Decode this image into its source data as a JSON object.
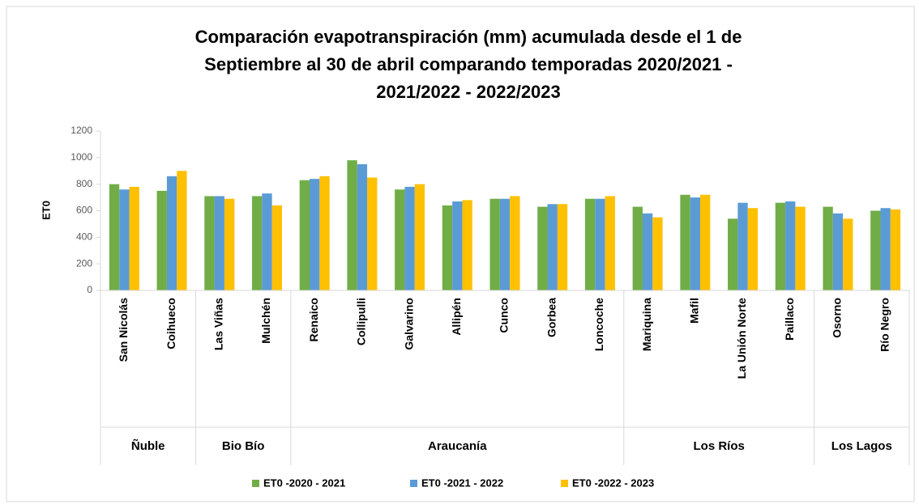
{
  "chart_data": {
    "type": "bar",
    "title": [
      "Comparación evapotranspiración (mm)  acumulada desde el 1 de",
      "Septiembre al 30 de abril comparando temporadas 2020/2021 -",
      "2021/2022 - 2022/2023"
    ],
    "y_label": "ET0",
    "groups": [
      {
        "name": "Ñuble",
        "categories": [
          "San Nicolás",
          "Coihueco"
        ]
      },
      {
        "name": "Bio Bío",
        "categories": [
          "Las Viñas",
          "Mulchén"
        ]
      },
      {
        "name": "Araucanía",
        "categories": [
          "Renaico",
          "Collipulli",
          "Galvarino",
          "Allipén",
          "Cunco",
          "Gorbea",
          "Loncoche"
        ]
      },
      {
        "name": "Los Ríos",
        "categories": [
          "Mariquina",
          "Mafil",
          "La Unión Norte",
          "Paillaco"
        ]
      },
      {
        "name": "Los Lagos",
        "categories": [
          "Osorno",
          "Río Negro"
        ]
      }
    ],
    "series": [
      {
        "name": "ET0 -2020 - 2021",
        "color": "#70ad47",
        "values": [
          800,
          750,
          710,
          710,
          830,
          980,
          760,
          640,
          690,
          630,
          690,
          630,
          720,
          540,
          660,
          630,
          600
        ]
      },
      {
        "name": "ET0 -2021 - 2022",
        "color": "#5b9bd5",
        "values": [
          760,
          860,
          710,
          730,
          840,
          950,
          780,
          670,
          690,
          650,
          690,
          580,
          700,
          660,
          670,
          580,
          620
        ]
      },
      {
        "name": "ET0 -2022 - 2023",
        "color": "#ffc000",
        "values": [
          780,
          900,
          690,
          640,
          860,
          850,
          800,
          680,
          710,
          650,
          710,
          550,
          720,
          620,
          630,
          540,
          610
        ]
      }
    ],
    "ylim": [
      0,
      1200
    ],
    "yticks": [
      0,
      200,
      400,
      600,
      800,
      1000,
      1200
    ],
    "grid": false,
    "legend": "bottom"
  }
}
